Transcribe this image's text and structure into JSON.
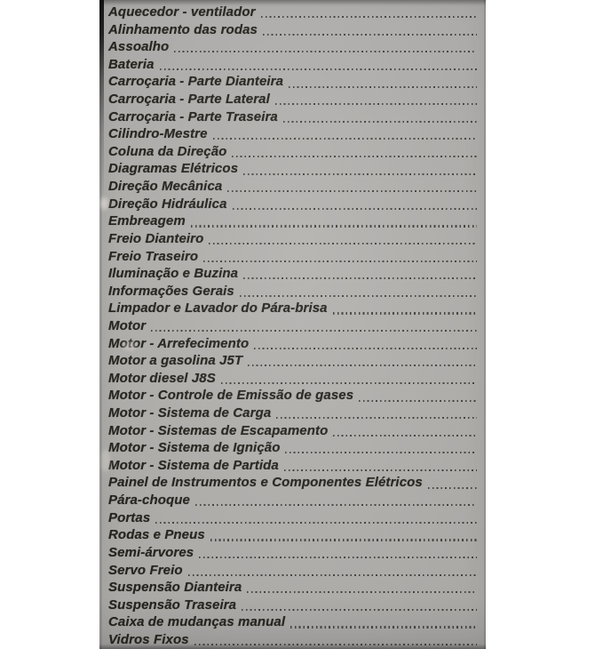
{
  "colors": {
    "background": "#ffffff",
    "paper": "#b3b1ae",
    "text": "#26251f",
    "leader_dots": "#33322e"
  },
  "toc": {
    "items": [
      "Aquecedor - ventilador",
      "Alinhamento das rodas",
      "Assoalho",
      "Bateria",
      "Carroçaria - Parte Dianteira",
      "Carroçaria - Parte Lateral",
      "Carroçaria - Parte Traseira",
      "Cilindro-Mestre",
      "Coluna da Direção",
      "Diagramas Elétricos",
      "Direção Mecânica",
      "Direção Hidráulica",
      "Embreagem",
      "Freio Dianteiro",
      "Freio Traseiro",
      "Iluminação e Buzina",
      "Informações Gerais",
      "Limpador e Lavador do Pára-brisa",
      "Motor",
      "Motor - Arrefecimento",
      "Motor a gasolina J5T",
      "Motor diesel J8S",
      "Motor - Controle de Emissão de gases",
      "Motor - Sistema de Carga",
      "Motor - Sistemas de Escapamento",
      "Motor - Sistema de Ignição",
      "Motor - Sistema de Partida",
      "Painel de Instrumentos e Componentes Elétricos",
      "Pára-choque",
      "Portas",
      "Rodas e Pneus",
      "Semi-árvores",
      "Servo Freio",
      "Suspensão Dianteira",
      "Suspensão Traseira",
      "Caixa de mudanças manual",
      "Vidros Fixos"
    ]
  }
}
